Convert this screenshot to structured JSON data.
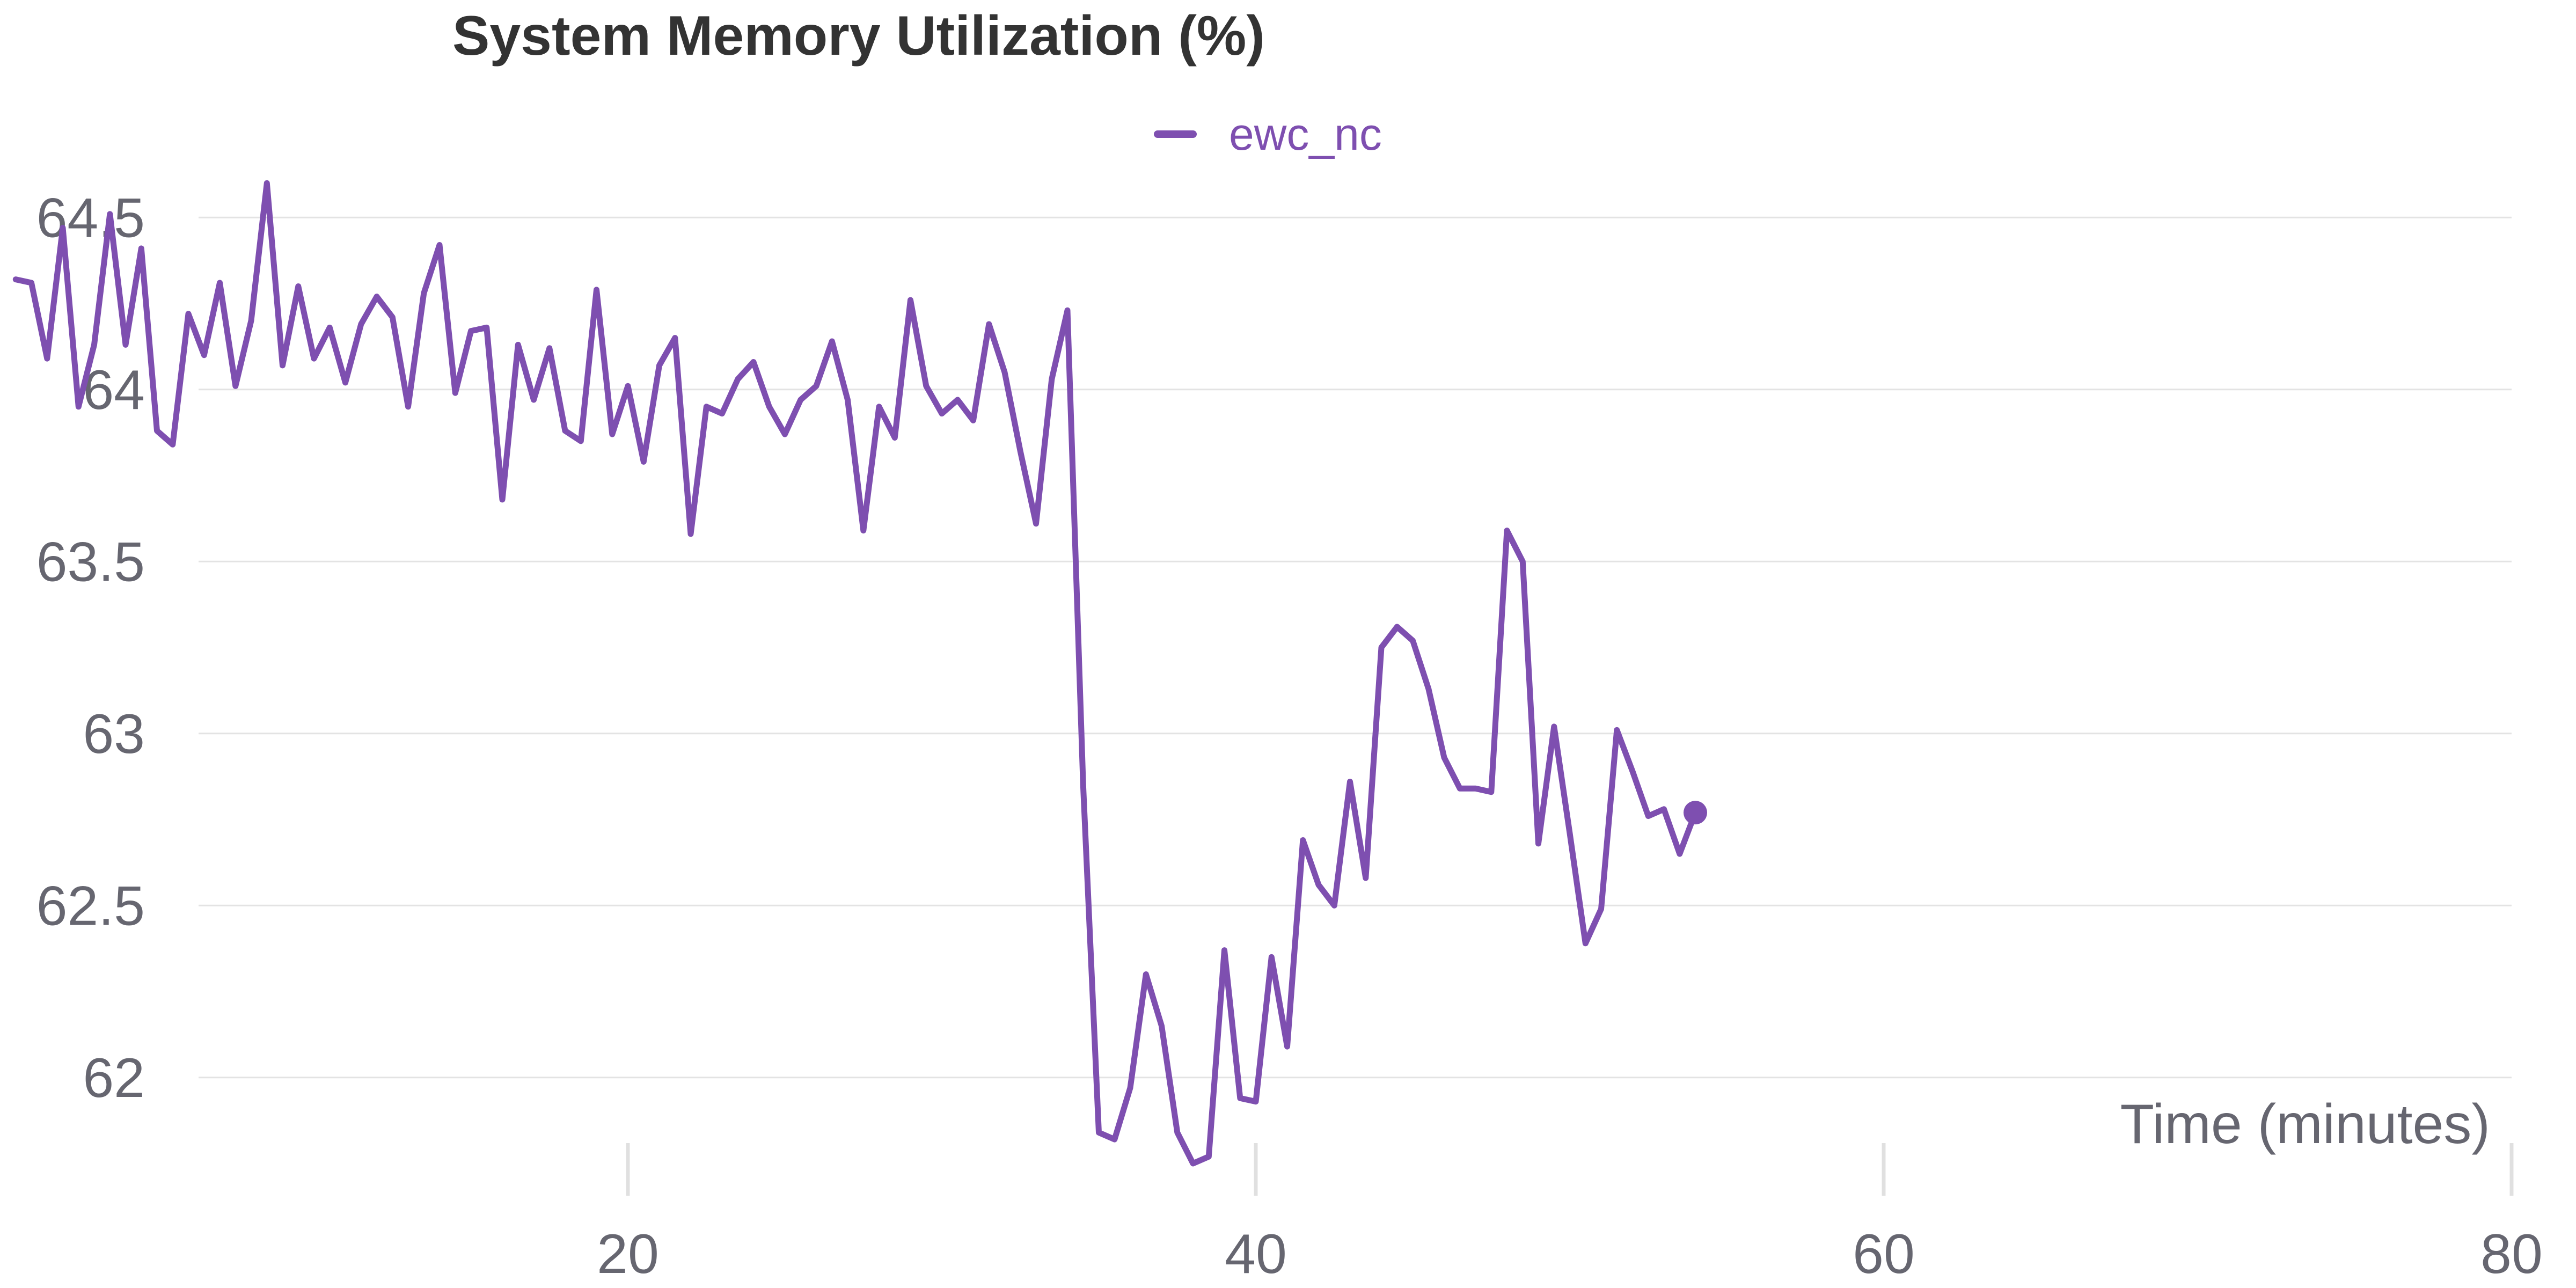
{
  "chart_data": {
    "type": "line",
    "title": "System Memory Utilization (%)",
    "xlabel": "Time (minutes)",
    "ylabel": "",
    "xlim": [
      0,
      80
    ],
    "ylim": [
      61.75,
      64.75
    ],
    "x_ticks": [
      20,
      40,
      60,
      80
    ],
    "y_ticks": [
      62,
      62.5,
      63,
      63.5,
      64,
      64.5
    ],
    "x_tick_labels": [
      "20",
      "40",
      "60",
      "80"
    ],
    "y_tick_labels": [
      "62",
      "62.5",
      "63",
      "63.5",
      "64",
      "64.5"
    ],
    "grid": true,
    "legend_position": "top-center",
    "series": [
      {
        "name": "ewc_nc",
        "color": "#7e4fb0",
        "points": [
          [
            0.5,
            64.32
          ],
          [
            1.0,
            64.31
          ],
          [
            1.5,
            64.09
          ],
          [
            2.0,
            64.47
          ],
          [
            2.5,
            63.95
          ],
          [
            3.0,
            64.13
          ],
          [
            3.5,
            64.51
          ],
          [
            4.0,
            64.13
          ],
          [
            4.5,
            64.41
          ],
          [
            5.0,
            63.88
          ],
          [
            5.5,
            63.84
          ],
          [
            6.0,
            64.22
          ],
          [
            6.5,
            64.1
          ],
          [
            7.0,
            64.31
          ],
          [
            7.5,
            64.01
          ],
          [
            8.0,
            64.2
          ],
          [
            8.5,
            64.6
          ],
          [
            9.0,
            64.07
          ],
          [
            9.5,
            64.3
          ],
          [
            10.0,
            64.09
          ],
          [
            10.5,
            64.18
          ],
          [
            11.0,
            64.02
          ],
          [
            11.5,
            64.19
          ],
          [
            12.0,
            64.27
          ],
          [
            12.5,
            64.21
          ],
          [
            13.0,
            63.95
          ],
          [
            13.5,
            64.28
          ],
          [
            14.0,
            64.42
          ],
          [
            14.5,
            63.99
          ],
          [
            15.0,
            64.17
          ],
          [
            15.5,
            64.18
          ],
          [
            16.0,
            63.68
          ],
          [
            16.5,
            64.13
          ],
          [
            17.0,
            63.97
          ],
          [
            17.5,
            64.12
          ],
          [
            18.0,
            63.88
          ],
          [
            18.5,
            63.85
          ],
          [
            19.0,
            64.29
          ],
          [
            19.5,
            63.87
          ],
          [
            20.0,
            64.01
          ],
          [
            20.5,
            63.79
          ],
          [
            21.0,
            64.07
          ],
          [
            21.5,
            64.15
          ],
          [
            22.0,
            63.58
          ],
          [
            22.5,
            63.95
          ],
          [
            23.0,
            63.93
          ],
          [
            23.5,
            64.03
          ],
          [
            24.0,
            64.08
          ],
          [
            24.5,
            63.95
          ],
          [
            25.0,
            63.87
          ],
          [
            25.5,
            63.97
          ],
          [
            26.0,
            64.01
          ],
          [
            26.5,
            64.14
          ],
          [
            27.0,
            63.97
          ],
          [
            27.5,
            63.59
          ],
          [
            28.0,
            63.95
          ],
          [
            28.5,
            63.86
          ],
          [
            29.0,
            64.26
          ],
          [
            29.5,
            64.01
          ],
          [
            30.0,
            63.93
          ],
          [
            30.5,
            63.97
          ],
          [
            31.0,
            63.91
          ],
          [
            31.5,
            64.19
          ],
          [
            32.0,
            64.05
          ],
          [
            32.5,
            63.82
          ],
          [
            33.0,
            63.61
          ],
          [
            33.5,
            64.03
          ],
          [
            34.0,
            64.23
          ],
          [
            34.5,
            62.85
          ],
          [
            35.0,
            61.84
          ],
          [
            35.5,
            61.82
          ],
          [
            36.0,
            61.97
          ],
          [
            36.5,
            62.3
          ],
          [
            37.0,
            62.15
          ],
          [
            37.5,
            61.84
          ],
          [
            38.0,
            61.75
          ],
          [
            38.5,
            61.77
          ],
          [
            39.0,
            62.37
          ],
          [
            39.5,
            61.94
          ],
          [
            40.0,
            61.93
          ],
          [
            40.5,
            62.35
          ],
          [
            41.0,
            62.09
          ],
          [
            41.5,
            62.69
          ],
          [
            42.0,
            62.56
          ],
          [
            42.5,
            62.5
          ],
          [
            43.0,
            62.86
          ],
          [
            43.5,
            62.58
          ],
          [
            44.0,
            63.25
          ],
          [
            44.5,
            63.31
          ],
          [
            45.0,
            63.27
          ],
          [
            45.5,
            63.13
          ],
          [
            46.0,
            62.93
          ],
          [
            46.5,
            62.84
          ],
          [
            47.0,
            62.84
          ],
          [
            47.5,
            62.83
          ],
          [
            48.0,
            63.59
          ],
          [
            48.5,
            63.5
          ],
          [
            49.0,
            62.68
          ],
          [
            49.5,
            63.02
          ],
          [
            50.0,
            62.71
          ],
          [
            50.5,
            62.39
          ],
          [
            51.0,
            62.49
          ],
          [
            51.5,
            63.01
          ],
          [
            52.0,
            62.89
          ],
          [
            52.5,
            62.76
          ],
          [
            53.0,
            62.78
          ],
          [
            53.5,
            62.65
          ],
          [
            54.0,
            62.77
          ]
        ]
      }
    ]
  }
}
